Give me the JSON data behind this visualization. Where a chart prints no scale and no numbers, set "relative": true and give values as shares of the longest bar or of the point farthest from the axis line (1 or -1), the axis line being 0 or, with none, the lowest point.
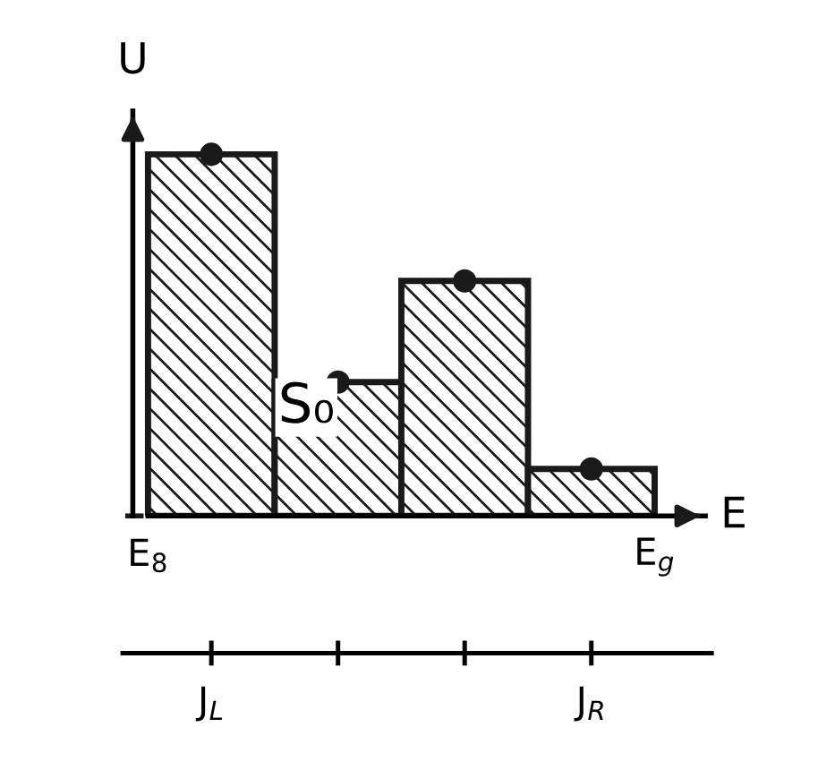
{
  "chart_data": {
    "type": "bar",
    "relative": true,
    "xlabel": "E",
    "ylabel": "U",
    "categories": [
      "J$_{L}$",
      null,
      null,
      "J$_{R}$"
    ],
    "series": [
      {
        "color": "#1a1a1a",
        "values": [
          1,
          0.37,
          0.65,
          0.13
        ]
      },
      {
        "type": "scatter",
        "color": "#1a1a1a",
        "values": [
          1,
          0.37,
          0.65,
          0.13
        ]
      }
    ],
    "annotations": [
      "S₀",
      "E$_{8}$",
      "E$_{g}$"
    ]
  }
}
